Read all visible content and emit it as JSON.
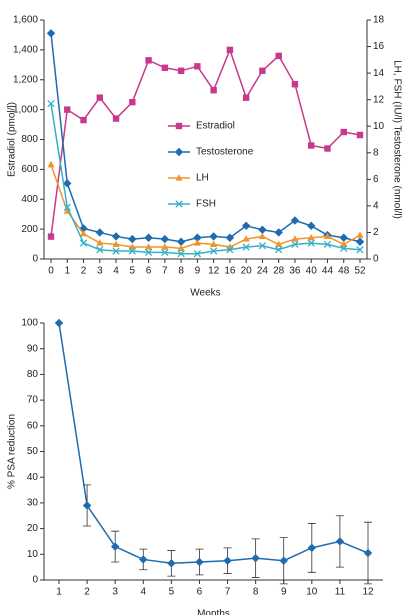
{
  "chart_data": [
    {
      "type": "line",
      "categories": [
        "0",
        "1",
        "2",
        "3",
        "4",
        "5",
        "6",
        "7",
        "8",
        "9",
        "12",
        "16",
        "20",
        "24",
        "28",
        "36",
        "40",
        "44",
        "48",
        "52"
      ],
      "x_label": "Weeks",
      "y_label": "Estradiol (pmol/l)",
      "y2_label": "LH, FSH (IU/l) Testosterone (nmol/l)",
      "ylim": [
        0,
        1600
      ],
      "yticks": [
        0,
        200,
        400,
        600,
        800,
        {
          "value": 1000,
          "label": "1,000"
        },
        {
          "value": 1200,
          "label": "1,200"
        },
        {
          "value": 1400,
          "label": "1,400"
        },
        {
          "value": 1600,
          "label": "1,600"
        }
      ],
      "y2lim": [
        0,
        18
      ],
      "y2ticks": [
        0,
        2,
        4,
        6,
        8,
        10,
        12,
        14,
        16,
        18
      ],
      "legend": "center",
      "series": [
        {
          "name": "Estradiol",
          "color": "#c8388c",
          "marker": "square",
          "values": [
            150,
            1000,
            930,
            1080,
            940,
            1050,
            1330,
            1280,
            1260,
            1290,
            1130,
            1400,
            1080,
            1260,
            1360,
            1170,
            760,
            740,
            850,
            830
          ]
        },
        {
          "name": "Testosterone",
          "color": "#1f6bb0",
          "marker": "diamond",
          "axis": "y2",
          "values": [
            17,
            5.7,
            2.3,
            2.0,
            1.7,
            1.5,
            1.6,
            1.5,
            1.3,
            1.6,
            1.7,
            1.6,
            2.5,
            2.2,
            2.0,
            2.9,
            2.5,
            1.8,
            1.6,
            1.3
          ]
        },
        {
          "name": "LH",
          "color": "#f0952a",
          "marker": "triangle",
          "axis": "y2",
          "values": [
            7.1,
            3.6,
            1.9,
            1.2,
            1.1,
            0.9,
            0.9,
            0.9,
            0.8,
            1.2,
            1.1,
            0.9,
            1.5,
            1.7,
            1.1,
            1.5,
            1.6,
            1.7,
            1.1,
            1.8
          ]
        },
        {
          "name": "FSH",
          "color": "#35b0c8",
          "marker": "cross",
          "axis": "y2",
          "values": [
            11.7,
            3.9,
            1.2,
            0.7,
            0.6,
            0.6,
            0.5,
            0.5,
            0.4,
            0.4,
            0.6,
            0.7,
            0.9,
            1.0,
            0.7,
            1.1,
            1.2,
            1.1,
            0.8,
            0.7
          ]
        }
      ]
    },
    {
      "type": "line",
      "categories": [
        "1",
        "2",
        "3",
        "4",
        "5",
        "6",
        "7",
        "8",
        "9",
        "10",
        "11",
        "12"
      ],
      "x_label": "Months",
      "y_label": "% PSA reduction",
      "ylim": [
        0,
        100
      ],
      "yticks": [
        0,
        10,
        20,
        30,
        40,
        50,
        60,
        70,
        80,
        90,
        100
      ],
      "color": "#1f6bb0",
      "marker": "diamond",
      "values": [
        100,
        29,
        13,
        8,
        6.5,
        7,
        7.5,
        8.5,
        7.5,
        12.5,
        15,
        10.5
      ],
      "errors": [
        0,
        8,
        6,
        4,
        5,
        5,
        5,
        7.5,
        9,
        9.5,
        10,
        12
      ]
    }
  ]
}
